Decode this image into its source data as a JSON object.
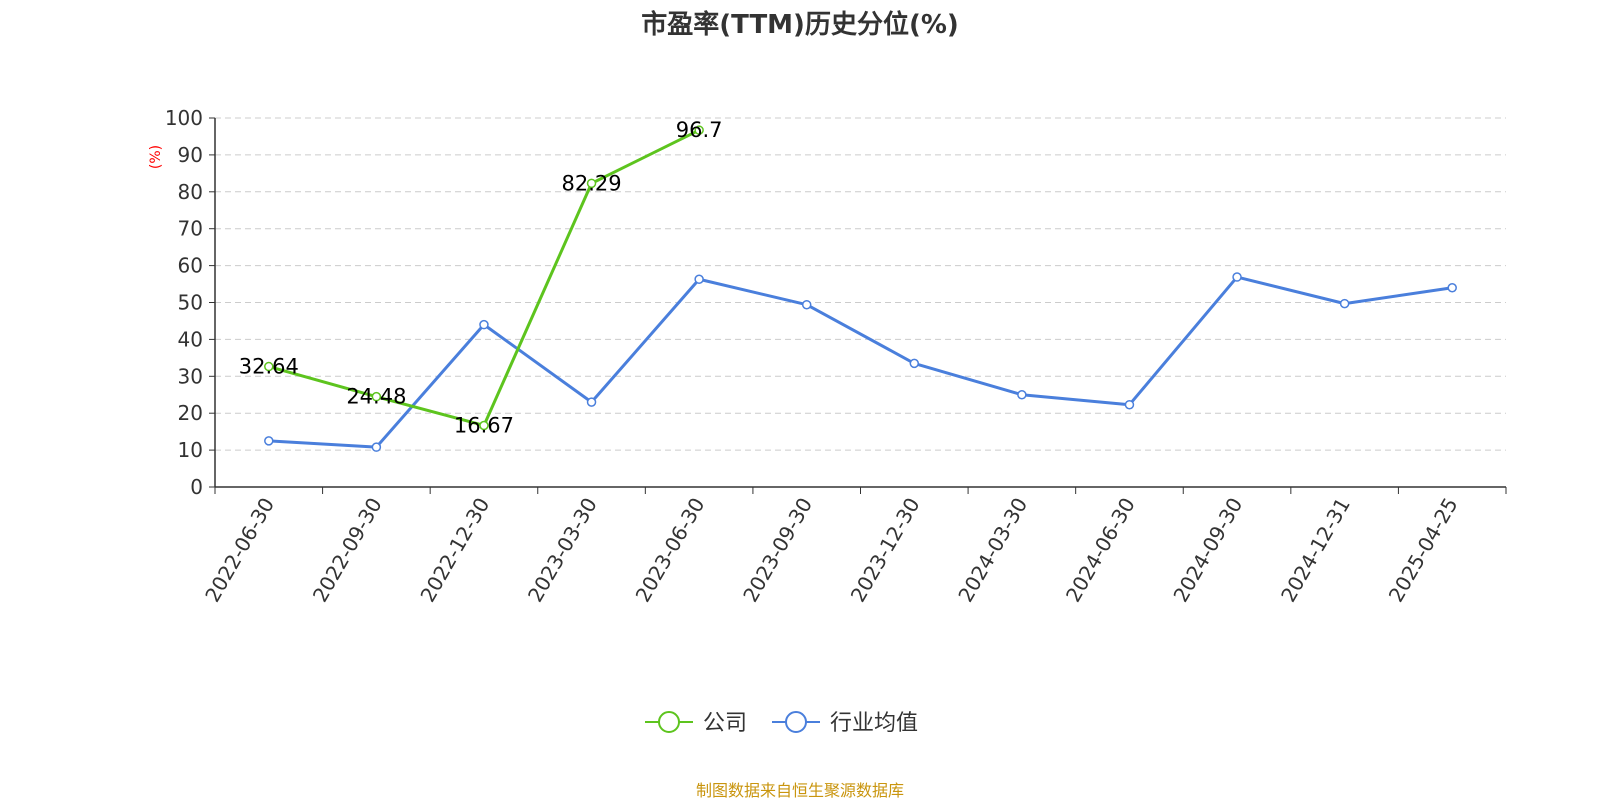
{
  "chart_data": {
    "type": "line",
    "title": "市盈率(TTM)历史分位(%)",
    "ylabel": "(%)",
    "ylim": [
      0,
      100
    ],
    "yticks": [
      0,
      10,
      20,
      30,
      40,
      50,
      60,
      70,
      80,
      90,
      100
    ],
    "categories": [
      "2022-06-30",
      "2022-09-30",
      "2022-12-30",
      "2023-03-30",
      "2023-06-30",
      "2023-09-30",
      "2023-12-30",
      "2024-03-30",
      "2024-06-30",
      "2024-09-30",
      "2024-12-31",
      "2025-04-25"
    ],
    "grid": true,
    "legend_position": "bottom",
    "series": [
      {
        "name": "公司",
        "color": "#5dc41e",
        "values": [
          32.64,
          24.48,
          16.67,
          82.29,
          96.7,
          null,
          null,
          null,
          null,
          null,
          null,
          null
        ],
        "labels": [
          "32.64",
          "24.48",
          "16.67",
          "82.29",
          "96.7"
        ]
      },
      {
        "name": "行业均值",
        "color": "#4a7fdc",
        "values": [
          12.5,
          10.8,
          44.0,
          23.0,
          56.3,
          49.4,
          33.5,
          25.0,
          22.3,
          56.9,
          49.7,
          54.0
        ]
      }
    ]
  },
  "source_text": "制图数据来自恒生聚源数据库",
  "source_color": "#c9950e"
}
